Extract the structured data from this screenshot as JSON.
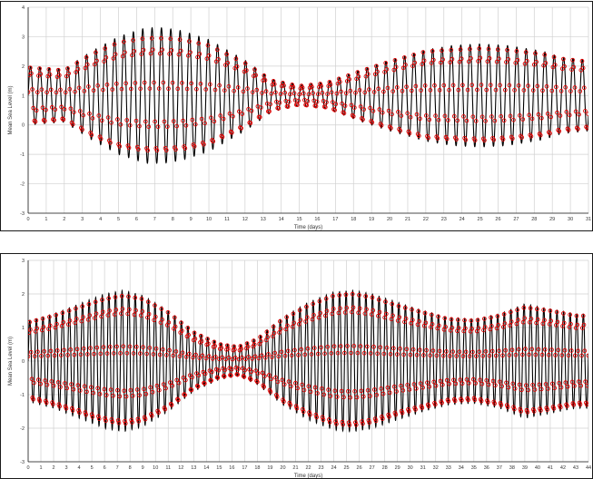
{
  "colors": {
    "observed": "#000000",
    "model": "#e00000",
    "grid": "#d0d0d0",
    "axis": "#1a1a1a"
  },
  "chart_data": [
    {
      "type": "line",
      "xlabel": "Time (days)",
      "ylabel": "Mean Sea Level (m)",
      "xlim": [
        0,
        31
      ],
      "ylim": [
        -3,
        4
      ],
      "xticks": [
        "0",
        "1",
        "2",
        "3",
        "4",
        "5",
        "6",
        "7",
        "8",
        "9",
        "10",
        "11",
        "12",
        "13",
        "14",
        "15",
        "16",
        "17",
        "18",
        "19",
        "20",
        "21",
        "22",
        "23",
        "24",
        "25",
        "26",
        "27",
        "28",
        "29",
        "30",
        "31"
      ],
      "yticks": [
        "-3",
        "-2",
        "-1",
        "0",
        "1",
        "2",
        "3",
        "4"
      ],
      "grid": true,
      "tidal_period_days": 0.5175,
      "mean_level": 1.0,
      "envelope": {
        "t": [
          0,
          2,
          3.5,
          5,
          6.5,
          7.5,
          8.5,
          10,
          12,
          13.5,
          15,
          16.5,
          18.5,
          20,
          22,
          23.5,
          25,
          26.5,
          28.5,
          29.5,
          31
        ],
        "amp_obs": [
          1.0,
          0.9,
          1.5,
          2.0,
          2.3,
          2.3,
          2.2,
          1.9,
          1.2,
          0.55,
          0.35,
          0.45,
          0.9,
          1.2,
          1.55,
          1.7,
          1.75,
          1.7,
          1.5,
          1.3,
          1.2
        ],
        "amp_mod": [
          0.95,
          0.85,
          1.4,
          1.8,
          1.95,
          1.95,
          1.9,
          1.7,
          1.1,
          0.5,
          0.32,
          0.42,
          0.85,
          1.15,
          1.5,
          1.55,
          1.6,
          1.55,
          1.4,
          1.25,
          1.15
        ]
      },
      "series": [
        {
          "style": "line",
          "color": "#000000"
        },
        {
          "style": "markers",
          "color": "#e00000"
        }
      ]
    },
    {
      "type": "line",
      "xlabel": "Time (days)",
      "ylabel": "Mean Sea Level (m)",
      "xlim": [
        0,
        44
      ],
      "ylim": [
        -3,
        3
      ],
      "xticks": [
        "0",
        "1",
        "2",
        "3",
        "4",
        "5",
        "6",
        "7",
        "8",
        "9",
        "10",
        "11",
        "12",
        "13",
        "14",
        "15",
        "16",
        "17",
        "18",
        "19",
        "20",
        "21",
        "22",
        "23",
        "24",
        "25",
        "26",
        "27",
        "28",
        "29",
        "30",
        "31",
        "32",
        "33",
        "34",
        "35",
        "36",
        "37",
        "38",
        "39",
        "40",
        "41",
        "42",
        "43",
        "44"
      ],
      "yticks": [
        "-3",
        "-2",
        "-1",
        "0",
        "1",
        "2",
        "3"
      ],
      "grid": true,
      "tidal_period_days": 0.5175,
      "mean_level": 0.0,
      "envelope": {
        "t": [
          0,
          2,
          4,
          6,
          7.5,
          9,
          11,
          13,
          15,
          16.5,
          18,
          20,
          22,
          24,
          25.5,
          27,
          29,
          31,
          33,
          35,
          37,
          39,
          41,
          43
        ],
        "amp_obs": [
          1.2,
          1.4,
          1.7,
          2.0,
          2.1,
          1.95,
          1.5,
          0.9,
          0.55,
          0.45,
          0.7,
          1.3,
          1.75,
          2.05,
          2.1,
          2.0,
          1.75,
          1.5,
          1.3,
          1.25,
          1.4,
          1.7,
          1.55,
          1.4
        ],
        "amp_mod": [
          1.15,
          1.35,
          1.6,
          1.85,
          1.95,
          1.85,
          1.45,
          0.85,
          0.5,
          0.42,
          0.65,
          1.25,
          1.65,
          1.95,
          2.0,
          1.9,
          1.65,
          1.45,
          1.25,
          1.2,
          1.35,
          1.6,
          1.5,
          1.35
        ]
      },
      "series": [
        {
          "style": "line",
          "color": "#000000"
        },
        {
          "style": "markers",
          "color": "#e00000"
        }
      ]
    }
  ]
}
